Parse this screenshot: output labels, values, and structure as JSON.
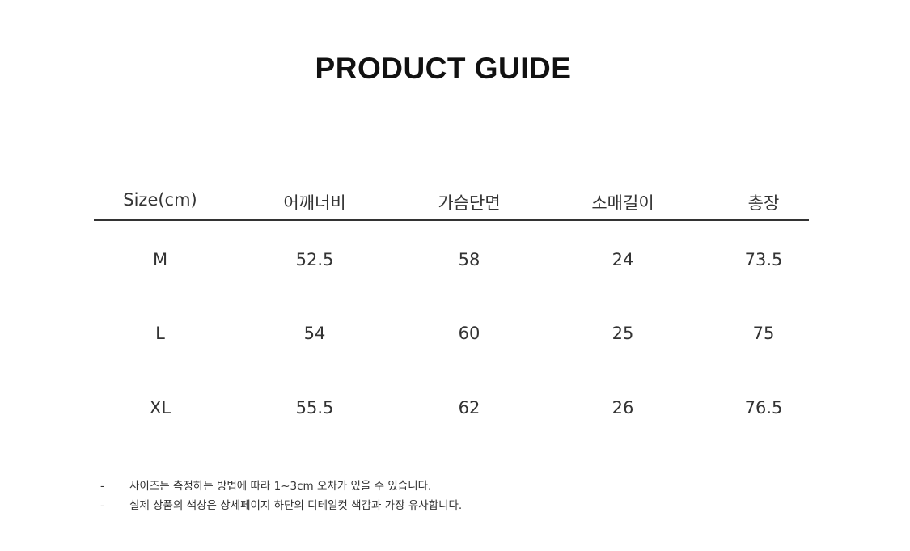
{
  "title": "PRODUCT GUIDE",
  "table": {
    "headers": [
      "Size(cm)",
      "어깨너비",
      "가슴단면",
      "소매길이",
      "총장"
    ],
    "rows": [
      [
        "M",
        "52.5",
        "58",
        "24",
        "73.5"
      ],
      [
        "L",
        "54",
        "60",
        "25",
        "75"
      ],
      [
        "XL",
        "55.5",
        "62",
        "26",
        "76.5"
      ]
    ]
  },
  "notes": [
    {
      "bullet": "-",
      "text": "사이즈는 측정하는 방법에 따라 1~3cm 오차가 있을 수 있습니다."
    },
    {
      "bullet": "-",
      "text": "실제 상품의 색상은 상세페이지 하단의 디테일컷 색감과 가장 유사합니다."
    }
  ]
}
